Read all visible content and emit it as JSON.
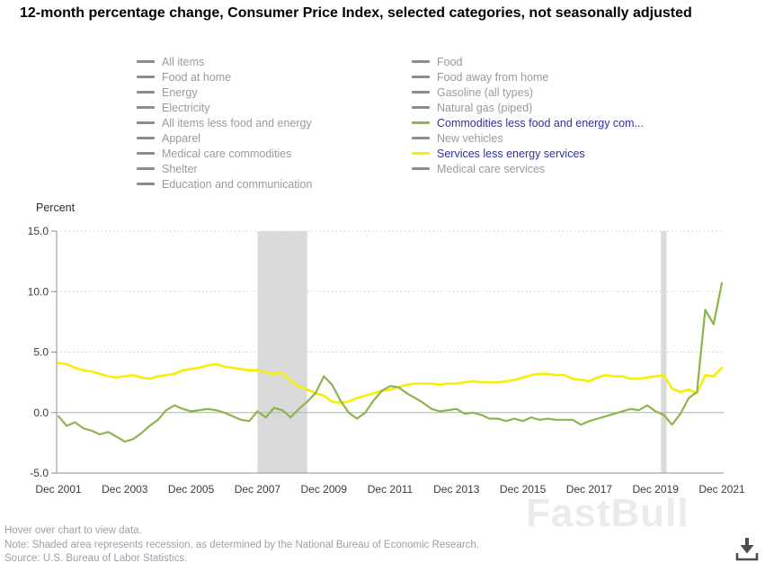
{
  "title": "12-month percentage change, Consumer Price Index, selected categories, not seasonally adjusted",
  "legend": {
    "columns": [
      {
        "items": [
          {
            "label": "All items",
            "active": false
          },
          {
            "label": "Food at home",
            "active": false
          },
          {
            "label": "Energy",
            "active": false
          },
          {
            "label": "Electricity",
            "active": false
          },
          {
            "label": "All items less food and energy",
            "active": false
          },
          {
            "label": "Apparel",
            "active": false
          },
          {
            "label": "Medical care commodities",
            "active": false
          },
          {
            "label": "Shelter",
            "active": false
          },
          {
            "label": "Education and communication",
            "active": false
          }
        ]
      },
      {
        "items": [
          {
            "label": "Food",
            "active": false
          },
          {
            "label": "Food away from home",
            "active": false
          },
          {
            "label": "Gasoline (all types)",
            "active": false
          },
          {
            "label": "Natural gas (piped)",
            "active": false
          },
          {
            "label": "Commodities less food and energy com...",
            "active": true,
            "color": "#8db44e"
          },
          {
            "label": "New vehicles",
            "active": false
          },
          {
            "label": "Services less energy services",
            "active": true,
            "color": "#f7ef00"
          },
          {
            "label": "Medical care services",
            "active": false
          }
        ]
      }
    ],
    "inactive_swatch_color": "#8c8c8c",
    "inactive_text_color": "#9a9a9a",
    "active_text_color": "#31319d"
  },
  "colors": {
    "green_series": "#8db44e",
    "yellow_series": "#f7ef00",
    "recession_band": "#dadada",
    "gridline": "#cccccc",
    "zero_line": "#b0b0b0",
    "axis": "#8f8f8f",
    "tick_text": "#3b3b3b",
    "footer_text": "#99a1a8",
    "download_icon": "#4d4d4d"
  },
  "footer": {
    "hover": "Hover over chart to view data.",
    "note": "Note: Shaded area represents recession, as determined by the National Bureau of Economic Research.",
    "source": "Source: U.S. Bureau of Labor Statistics."
  },
  "watermark": "FastBull",
  "icons": {
    "download": "down-arrow-into-tray"
  },
  "chart_data": {
    "type": "line",
    "title": "12-month percentage change, Consumer Price Index, selected categories, not seasonally adjusted",
    "xlabel": "",
    "ylabel": "Percent",
    "ylim": [
      -5,
      15
    ],
    "grid": "dotted-horizontal",
    "legend_position": "top",
    "yticks": [
      {
        "value": 15,
        "label": "15.0"
      },
      {
        "value": 10,
        "label": "10.0"
      },
      {
        "value": 5,
        "label": "5.0"
      },
      {
        "value": 0,
        "label": "0.0"
      },
      {
        "value": -5,
        "label": "-5.0"
      }
    ],
    "xticks": [
      {
        "month": 0,
        "label": "Dec 2001"
      },
      {
        "month": 24,
        "label": "Dec 2003"
      },
      {
        "month": 48,
        "label": "Dec 2005"
      },
      {
        "month": 72,
        "label": "Dec 2007"
      },
      {
        "month": 96,
        "label": "Dec 2009"
      },
      {
        "month": 120,
        "label": "Dec 2011"
      },
      {
        "month": 144,
        "label": "Dec 2013"
      },
      {
        "month": 168,
        "label": "Dec 2015"
      },
      {
        "month": 192,
        "label": "Dec 2017"
      },
      {
        "month": 216,
        "label": "Dec 2019"
      },
      {
        "month": 240,
        "label": "Dec 2021"
      }
    ],
    "x_start": "Dec 2001",
    "x_end": "Dec 2021",
    "x_step_months": 3,
    "x_total_months": 240,
    "recessions": [
      {
        "from_month": 72,
        "to_month": 90
      },
      {
        "from_month": 218,
        "to_month": 220
      }
    ],
    "series": [
      {
        "name": "Services less energy services",
        "color": "#f7ef00",
        "stroke_width": 2.6,
        "values": [
          4.1,
          4.0,
          3.7,
          3.5,
          3.4,
          3.2,
          3.0,
          2.9,
          3.0,
          3.1,
          2.9,
          2.8,
          3.0,
          3.1,
          3.2,
          3.5,
          3.6,
          3.7,
          3.9,
          4.0,
          3.8,
          3.7,
          3.6,
          3.5,
          3.5,
          3.3,
          3.2,
          3.3,
          2.6,
          2.2,
          1.9,
          1.6,
          1.4,
          0.9,
          0.8,
          0.9,
          1.2,
          1.4,
          1.6,
          1.8,
          1.9,
          2.1,
          2.3,
          2.4,
          2.4,
          2.4,
          2.3,
          2.4,
          2.4,
          2.5,
          2.6,
          2.5,
          2.5,
          2.5,
          2.6,
          2.7,
          2.9,
          3.1,
          3.2,
          3.2,
          3.1,
          3.1,
          2.8,
          2.7,
          2.6,
          2.9,
          3.1,
          3.0,
          3.0,
          2.8,
          2.8,
          2.9,
          3.0,
          3.1,
          2.0,
          1.7,
          1.9,
          1.6,
          3.1,
          3.0,
          3.7
        ]
      },
      {
        "name": "Commodities less food and energy com...",
        "color": "#8db44e",
        "stroke_width": 2.2,
        "values": [
          -0.3,
          -1.1,
          -0.8,
          -1.3,
          -1.5,
          -1.8,
          -1.6,
          -2.0,
          -2.4,
          -2.2,
          -1.7,
          -1.1,
          -0.6,
          0.2,
          0.6,
          0.3,
          0.1,
          0.2,
          0.3,
          0.2,
          0.0,
          -0.3,
          -0.6,
          -0.7,
          0.1,
          -0.4,
          0.4,
          0.2,
          -0.4,
          0.3,
          0.9,
          1.6,
          3.0,
          2.3,
          1.0,
          0.0,
          -0.5,
          0.0,
          1.0,
          1.8,
          2.2,
          2.1,
          1.6,
          1.2,
          0.8,
          0.3,
          0.1,
          0.2,
          0.3,
          -0.1,
          0.0,
          -0.2,
          -0.5,
          -0.5,
          -0.7,
          -0.5,
          -0.7,
          -0.4,
          -0.6,
          -0.5,
          -0.6,
          -0.6,
          -0.6,
          -1.0,
          -0.7,
          -0.5,
          -0.3,
          -0.1,
          0.1,
          0.3,
          0.2,
          0.6,
          0.1,
          -0.2,
          -1.0,
          -0.1,
          1.2,
          1.7,
          8.5,
          7.3,
          10.7
        ]
      }
    ]
  }
}
